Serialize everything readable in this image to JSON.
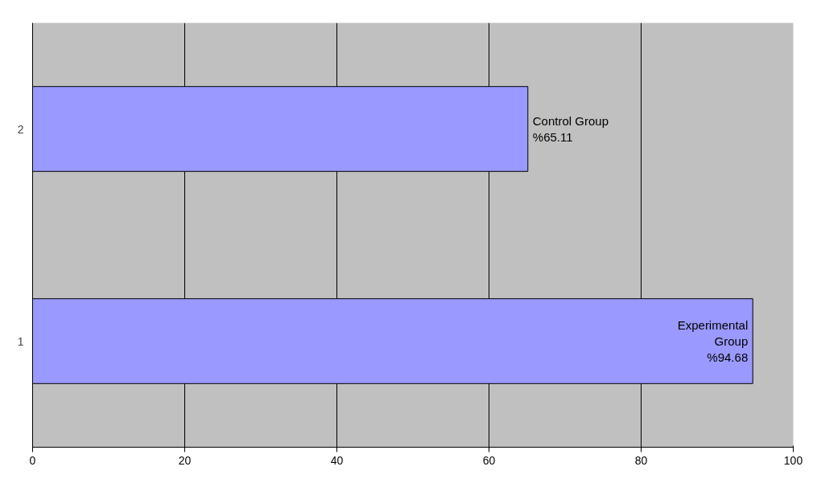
{
  "chart_data": {
    "type": "bar",
    "orientation": "horizontal",
    "categories": [
      "2",
      "1"
    ],
    "values": [
      65.11,
      94.68
    ],
    "value_labels": [
      "Control Group\n%65.11",
      "Experimental\nGroup\n%94.68"
    ],
    "color": "#9999ff",
    "xlim": [
      0,
      100
    ],
    "xticks": [
      0,
      20,
      40,
      60,
      80,
      100
    ],
    "grid": "x"
  }
}
